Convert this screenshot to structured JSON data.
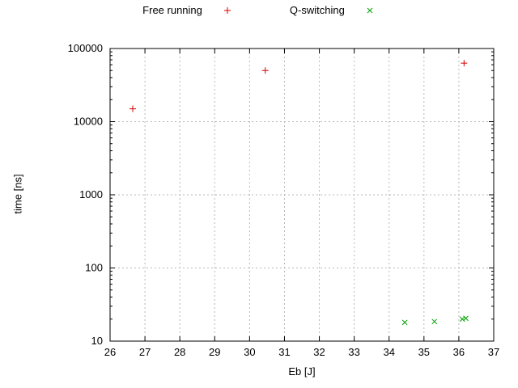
{
  "chart_data": {
    "type": "scatter",
    "xlabel": "Eb [J]",
    "ylabel": "time [ns]",
    "xlim": [
      26,
      37
    ],
    "ylim": [
      10,
      100000
    ],
    "x_scale": "linear",
    "y_scale": "log",
    "grid": true,
    "legend_position": "top-center",
    "xticks": [
      26,
      27,
      28,
      29,
      30,
      31,
      32,
      33,
      34,
      35,
      36,
      37
    ],
    "yticks": [
      10,
      100,
      1000,
      10000,
      100000
    ],
    "series": [
      {
        "name": "Free running",
        "marker": "plus",
        "color": "#d40000",
        "points": [
          [
            26.65,
            15000
          ],
          [
            30.45,
            50000
          ],
          [
            36.15,
            63000
          ]
        ]
      },
      {
        "name": "Q-switching",
        "marker": "x",
        "color": "#00a000",
        "points": [
          [
            34.45,
            18
          ],
          [
            35.3,
            18.5
          ],
          [
            36.1,
            20
          ],
          [
            36.2,
            20.5
          ]
        ]
      }
    ]
  }
}
